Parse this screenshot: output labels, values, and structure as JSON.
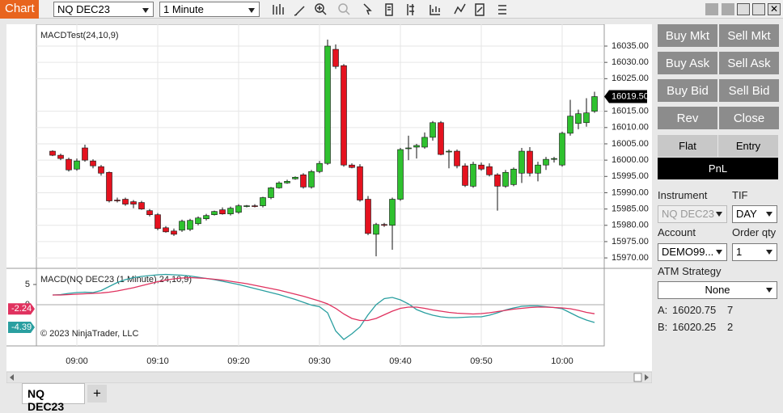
{
  "toolbar": {
    "tab": "Chart",
    "instrument": "NQ DEC23",
    "interval": "1 Minute"
  },
  "chart_data": [
    {
      "type": "candlestick",
      "title": "MACDTest(24,10,9)",
      "x": [
        "08:57",
        "08:58",
        "08:59",
        "09:00",
        "09:01",
        "09:02",
        "09:03",
        "09:04",
        "09:05",
        "09:06",
        "09:07",
        "09:08",
        "09:09",
        "09:10",
        "09:11",
        "09:12",
        "09:13",
        "09:14",
        "09:15",
        "09:16",
        "09:17",
        "09:18",
        "09:19",
        "09:20",
        "09:21",
        "09:22",
        "09:23",
        "09:24",
        "09:25",
        "09:26",
        "09:27",
        "09:28",
        "09:29",
        "09:30",
        "09:31",
        "09:32",
        "09:33",
        "09:34",
        "09:35",
        "09:36",
        "09:37",
        "09:38",
        "09:39",
        "09:40",
        "09:41",
        "09:42",
        "09:43",
        "09:44",
        "09:45",
        "09:46",
        "09:47",
        "09:48",
        "09:49",
        "09:50",
        "09:51",
        "09:52",
        "09:53",
        "09:54",
        "09:55",
        "09:56",
        "09:57",
        "09:58",
        "09:59",
        "10:00",
        "10:01",
        "10:02",
        "10:03",
        "10:04"
      ],
      "open": [
        16002.75,
        16001.5,
        16000.25,
        15997.25,
        16003.75,
        15999.75,
        15998,
        15996.25,
        15987.75,
        15988,
        15987.25,
        15987,
        15984.5,
        15983.25,
        15979.25,
        15978.25,
        15978.5,
        15978.75,
        15980.5,
        15982,
        15983.25,
        15984.75,
        15983.5,
        15984,
        15985.75,
        15986,
        15986,
        15988.5,
        15991.5,
        15993,
        15994.25,
        15995.5,
        15991.75,
        15996.5,
        15999,
        16034,
        16029,
        15998.5,
        15998,
        15988,
        15977.25,
        15980.25,
        15980,
        15988,
        16003.5,
        16004,
        16004,
        16007,
        16011.5,
        16002.5,
        16002.75,
        15998.25,
        15992,
        15998.5,
        15998,
        15995.5,
        15992,
        15992.5,
        15996,
        16002.75,
        15996,
        15998.5,
        16000.25,
        15998.5,
        16008.25,
        16011.25,
        16011.5,
        16015
      ],
      "high": [
        16003,
        16002,
        16000.75,
        16000.5,
        16004.75,
        16000.25,
        15998.5,
        15996.5,
        15988.5,
        15988.5,
        15987.75,
        15987.5,
        15985,
        15983.75,
        15979.75,
        15979,
        15981.75,
        15982,
        15982.75,
        15983.5,
        15984.5,
        15985.5,
        15985.75,
        15986.5,
        15986.25,
        15986.5,
        15988.75,
        15991.75,
        15993.5,
        15994,
        15995,
        15996,
        15997,
        15999.75,
        16037,
        16035.5,
        16029.5,
        15999,
        15998.75,
        15989,
        15980.75,
        15980.75,
        15988.5,
        16003.75,
        16007.5,
        16005,
        16008.5,
        16012,
        16012,
        16003.25,
        16003.25,
        15999,
        15999.5,
        15999.25,
        15999,
        15996,
        15997,
        15997.75,
        16003.75,
        16004,
        15999.5,
        16001,
        16001,
        16008.75,
        16018.5,
        16015.5,
        16019,
        16021
      ],
      "low": [
        16001.25,
        16000,
        15996.5,
        15996.75,
        15999.5,
        15997.5,
        15995.25,
        15987,
        15987,
        15986,
        15985.25,
        15984.75,
        15982.75,
        15978.5,
        15977.75,
        15976.75,
        15978,
        15978.25,
        15980,
        15981.5,
        15983,
        15983.25,
        15983,
        15983.5,
        15985.5,
        15985.5,
        15985.5,
        15988,
        15991.25,
        15992.75,
        15994,
        15991.25,
        15991.25,
        15996,
        15998.5,
        16028,
        15998,
        15997.5,
        15987.25,
        15977,
        15970.5,
        15979.5,
        15972.5,
        15987.5,
        16000,
        16000.5,
        16003.5,
        16006,
        16001.5,
        15997.5,
        15997.5,
        15991.75,
        15991.5,
        15996.75,
        15995,
        15984.5,
        15991.5,
        15992,
        15993,
        15995,
        15993.5,
        15997,
        15999.25,
        15998,
        16007.5,
        16009.5,
        16010.25,
        16014.5
      ],
      "close": [
        16001.5,
        16000.5,
        15997,
        15999.75,
        16000,
        15998.25,
        15996,
        15987.5,
        15987.5,
        15986.5,
        15986.5,
        15985,
        15983.25,
        15979,
        15978,
        15977.25,
        15981.25,
        15981.5,
        15982.25,
        15983,
        15984.25,
        15983.5,
        15985.25,
        15986,
        15986,
        15985.75,
        15988.5,
        15991.5,
        15993,
        15993.5,
        15994.75,
        15991.75,
        15996.5,
        15999,
        16035,
        16028.75,
        15998.5,
        15997.75,
        15987.75,
        15977.5,
        15980.25,
        15980,
        15988,
        16003.25,
        16003.75,
        16004.5,
        16007,
        16011.5,
        16001.75,
        16002.75,
        15998.25,
        15992.25,
        15998.75,
        15997.25,
        15995.5,
        15992,
        15996.25,
        15997.25,
        16002.75,
        15996,
        15998.5,
        16000.25,
        16000.5,
        16008.25,
        16013.5,
        16014.25,
        16014.5,
        16019.5
      ],
      "color_up": "#2fc12f",
      "color_down": "#e5121f",
      "ylim": [
        15966.8,
        16041.7
      ],
      "yticks": [
        {
          "value": 15970,
          "label": "15970.00"
        },
        {
          "value": 15975,
          "label": "15975.00"
        },
        {
          "value": 15980,
          "label": "15980.00"
        },
        {
          "value": 15985,
          "label": "15985.00"
        },
        {
          "value": 15990,
          "label": "15990.00"
        },
        {
          "value": 15995,
          "label": "15995.00"
        },
        {
          "value": 16000,
          "label": "16000.00"
        },
        {
          "value": 16005,
          "label": "16005.00"
        },
        {
          "value": 16010,
          "label": "16010.00"
        },
        {
          "value": 16015,
          "label": "16015.00"
        },
        {
          "value": 16025,
          "label": "16025.00"
        },
        {
          "value": 16030,
          "label": "16030.00"
        },
        {
          "value": 16035,
          "label": "16035.00"
        }
      ],
      "last_price": {
        "value": 16019.5,
        "label": "16019.50"
      },
      "xticks": [
        "09:00",
        "09:10",
        "09:20",
        "09:30",
        "09:40",
        "09:50",
        "10:00"
      ],
      "grid": true
    },
    {
      "type": "line",
      "title": "MACD(NQ DEC23 (1 Minute),24,10,9)",
      "annotation": "© 2023 NinjaTrader, LLC",
      "series": [
        {
          "color": "#2a9fa0",
          "values": [
            2.4,
            2.5,
            2.8,
            3.0,
            3.1,
            3.0,
            3.5,
            4.5,
            5.5,
            6.2,
            6.7,
            7.0,
            7.2,
            7.4,
            7.5,
            7.4,
            7.3,
            7.1,
            6.8,
            6.5,
            6.2,
            5.8,
            5.4,
            5.0,
            4.5,
            4.0,
            3.5,
            3.0,
            2.5,
            1.9,
            1.3,
            0.6,
            -0.1,
            -0.5,
            -2.0,
            -6.5,
            -8.6,
            -7.2,
            -5.5,
            -2.5,
            0.0,
            1.5,
            1.8,
            1.2,
            0.2,
            -1.2,
            -2.0,
            -2.6,
            -3.0,
            -3.2,
            -3.2,
            -3.1,
            -3.0,
            -3.0,
            -2.6,
            -2.0,
            -1.3,
            -0.8,
            -0.4,
            -0.3,
            -0.3,
            -0.5,
            -0.7,
            -1.0,
            -2.0,
            -3.0,
            -3.8,
            -4.39
          ]
        },
        {
          "color": "#e0325f",
          "values": [
            2.4,
            2.4,
            2.5,
            2.6,
            2.7,
            2.8,
            2.9,
            3.1,
            3.4,
            3.8,
            4.2,
            4.7,
            5.2,
            5.7,
            6.1,
            6.4,
            6.6,
            6.7,
            6.6,
            6.5,
            6.3,
            6.1,
            5.8,
            5.5,
            5.2,
            4.8,
            4.4,
            4.0,
            3.6,
            3.1,
            2.6,
            2.1,
            1.5,
            0.9,
            0.2,
            -0.9,
            -2.3,
            -3.4,
            -3.9,
            -3.9,
            -3.4,
            -2.5,
            -1.6,
            -0.9,
            -0.6,
            -0.6,
            -0.9,
            -1.3,
            -1.6,
            -1.9,
            -2.1,
            -2.2,
            -2.3,
            -2.2,
            -2.0,
            -1.7,
            -1.4,
            -1.1,
            -0.9,
            -0.7,
            -0.6,
            -0.6,
            -0.7,
            -0.8,
            -1.0,
            -1.4,
            -1.9,
            -2.24
          ]
        }
      ],
      "ylim": [
        -10.2,
        8.8
      ],
      "yticks": [
        0,
        5
      ]
    }
  ],
  "order_panel": {
    "buttons": [
      [
        "Buy Mkt",
        "Sell Mkt"
      ],
      [
        "Buy Ask",
        "Sell Ask"
      ],
      [
        "Buy Bid",
        "Sell Bid"
      ],
      [
        "Rev",
        "Close"
      ]
    ],
    "position": [
      "Flat",
      "Entry"
    ],
    "pnl": "PnL",
    "instrument_label": "Instrument",
    "instrument": "NQ DEC23",
    "tif_label": "TIF",
    "tif": "DAY",
    "account_label": "Account",
    "account": "DEMO99...",
    "qty_label": "Order qty",
    "qty": 1,
    "atm_label": "ATM Strategy",
    "atm": "None",
    "ask": [
      "A:",
      16020.75,
      7
    ],
    "bid": [
      "B:",
      16020.25,
      2
    ]
  },
  "tabs": [
    "NQ DEC23",
    "+"
  ]
}
